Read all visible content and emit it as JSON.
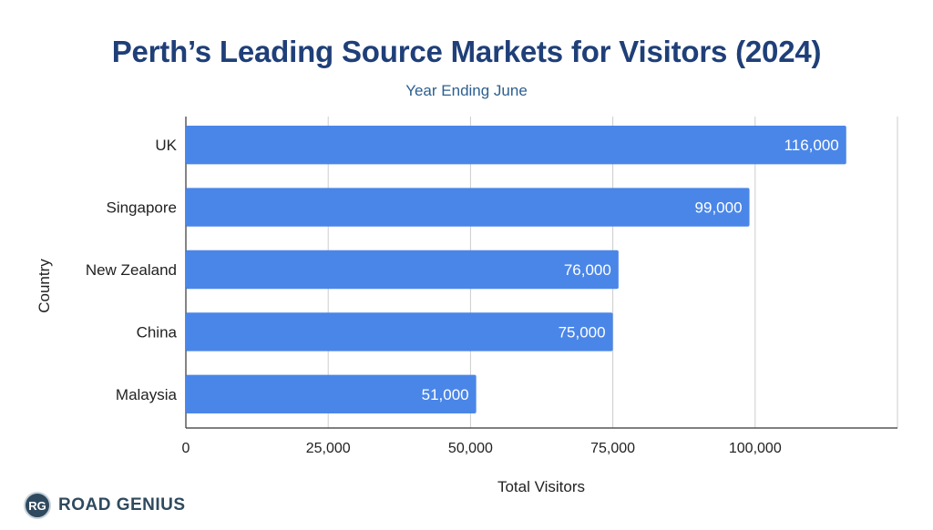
{
  "chart_data": {
    "type": "bar",
    "orientation": "horizontal",
    "title": "Perth’s Leading Source Markets for Visitors (2024)",
    "subtitle": "Year Ending June",
    "xlabel": "Total Visitors",
    "ylabel": "Country",
    "categories": [
      "UK",
      "Singapore",
      "New Zealand",
      "China",
      "Malaysia"
    ],
    "values": [
      116000,
      99000,
      76000,
      75000,
      51000
    ],
    "data_labels": [
      "116,000",
      "99,000",
      "76,000",
      "75,000",
      "51,000"
    ],
    "xlim": [
      0,
      125000
    ],
    "xticks": [
      0,
      25000,
      50000,
      75000,
      100000
    ],
    "xtick_labels": [
      "0",
      "25,000",
      "50,000",
      "75,000",
      "100,000"
    ],
    "grid": true,
    "bar_color": "#4a86e8",
    "label_color": "#ffffff"
  },
  "branding": {
    "badge": "RG",
    "name": "ROAD GENIUS"
  }
}
